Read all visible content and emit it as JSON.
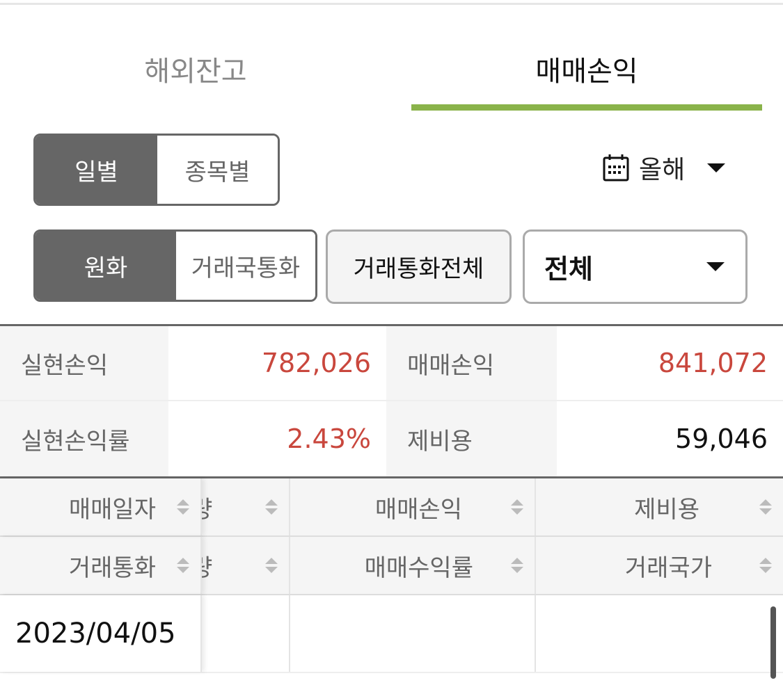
{
  "tabs": [
    {
      "label": "해외잔고",
      "active": false
    },
    {
      "label": "매매손익",
      "active": true
    }
  ],
  "accent_color": "#8ab34a",
  "view_toggle": {
    "options": [
      "일별",
      "종목별"
    ],
    "selected": "일별"
  },
  "period": {
    "icon": "calendar-icon",
    "label": "올해"
  },
  "currency_toggle": {
    "options": [
      "원화",
      "거래국통화"
    ],
    "selected": "원화"
  },
  "currency_all_button": "거래통화전체",
  "filter_select": {
    "value": "전체"
  },
  "summary": {
    "realized_pl_label": "실현손익",
    "realized_pl_value": "782,026",
    "trade_pl_label": "매매손익",
    "trade_pl_value": "841,072",
    "realized_rate_label": "실현손익률",
    "realized_rate_value": "2.43%",
    "fees_label": "제비용",
    "fees_value": "59,046",
    "positive_color": "#c9473d"
  },
  "grid": {
    "header_row1": [
      "매매일자",
      "량",
      "매매손익",
      "제비용"
    ],
    "header_row2": [
      "거래통화",
      "량",
      "매매수익률",
      "거래국가"
    ],
    "rows": [
      {
        "date": "2023/04/05"
      }
    ]
  }
}
